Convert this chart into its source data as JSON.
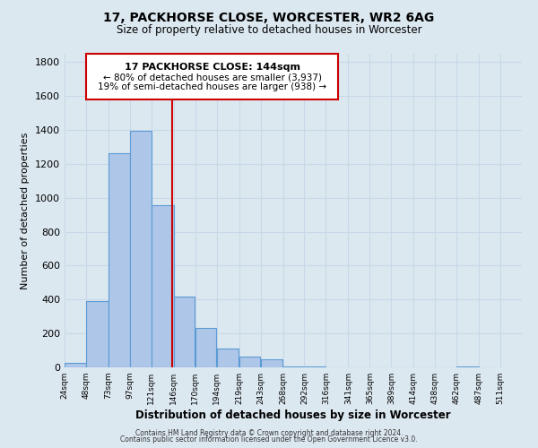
{
  "title": "17, PACKHORSE CLOSE, WORCESTER, WR2 6AG",
  "subtitle": "Size of property relative to detached houses in Worcester",
  "xlabel": "Distribution of detached houses by size in Worcester",
  "ylabel": "Number of detached properties",
  "footer_line1": "Contains HM Land Registry data © Crown copyright and database right 2024.",
  "footer_line2": "Contains public sector information licensed under the Open Government Licence v3.0.",
  "annotation_line1": "17 PACKHORSE CLOSE: 144sqm",
  "annotation_line2": "← 80% of detached houses are smaller (3,937)",
  "annotation_line3": "19% of semi-detached houses are larger (938) →",
  "bar_left_edges": [
    24,
    48,
    73,
    97,
    121,
    146,
    170,
    194,
    219,
    243,
    268,
    292,
    316,
    341,
    365,
    389,
    414,
    438,
    462,
    487
  ],
  "bar_widths": [
    24,
    25,
    24,
    24,
    25,
    24,
    24,
    25,
    24,
    25,
    24,
    24,
    25,
    24,
    24,
    25,
    24,
    24,
    25,
    24
  ],
  "bar_heights": [
    25,
    390,
    1265,
    1395,
    955,
    420,
    235,
    110,
    65,
    45,
    5,
    5,
    0,
    0,
    0,
    0,
    0,
    0,
    5,
    0
  ],
  "tick_labels": [
    "24sqm",
    "48sqm",
    "73sqm",
    "97sqm",
    "121sqm",
    "146sqm",
    "170sqm",
    "194sqm",
    "219sqm",
    "243sqm",
    "268sqm",
    "292sqm",
    "316sqm",
    "341sqm",
    "365sqm",
    "389sqm",
    "414sqm",
    "438sqm",
    "462sqm",
    "487sqm",
    "511sqm"
  ],
  "tick_positions": [
    24,
    48,
    73,
    97,
    121,
    146,
    170,
    194,
    219,
    243,
    268,
    292,
    316,
    341,
    365,
    389,
    414,
    438,
    462,
    487,
    511
  ],
  "bar_color": "#aec6e8",
  "bar_edge_color": "#5b9bd5",
  "vline_x": 144,
  "vline_color": "#cc0000",
  "annotation_box_color": "#cc0000",
  "ylim": [
    0,
    1850
  ],
  "yticks": [
    0,
    200,
    400,
    600,
    800,
    1000,
    1200,
    1400,
    1600,
    1800
  ],
  "grid_color": "#c8d8e8",
  "background_color": "#dce8f0"
}
